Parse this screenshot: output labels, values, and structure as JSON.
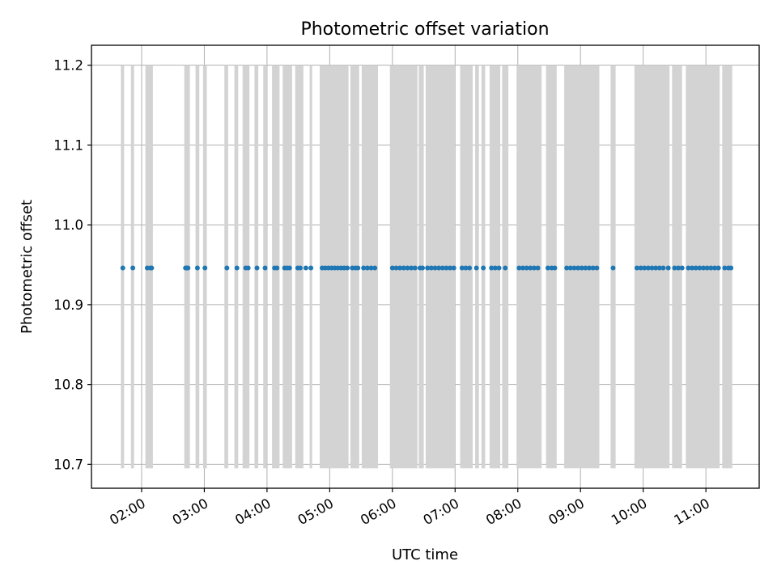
{
  "chart_data": {
    "type": "scatter",
    "title": "Photometric offset variation",
    "xlabel": "UTC time",
    "ylabel": "Photometric offset",
    "x_unit": "hours UTC",
    "xlim": [
      1.2,
      11.85
    ],
    "ylim": [
      10.67,
      11.225
    ],
    "grid": true,
    "x_ticks": [
      {
        "value": 2,
        "label": "02:00"
      },
      {
        "value": 3,
        "label": "03:00"
      },
      {
        "value": 4,
        "label": "04:00"
      },
      {
        "value": 5,
        "label": "05:00"
      },
      {
        "value": 6,
        "label": "06:00"
      },
      {
        "value": 7,
        "label": "07:00"
      },
      {
        "value": 8,
        "label": "08:00"
      },
      {
        "value": 9,
        "label": "09:00"
      },
      {
        "value": 10,
        "label": "10:00"
      },
      {
        "value": 11,
        "label": "11:00"
      }
    ],
    "y_ticks": [
      {
        "value": 10.7,
        "label": "10.7"
      },
      {
        "value": 10.8,
        "label": "10.8"
      },
      {
        "value": 10.9,
        "label": "10.9"
      },
      {
        "value": 11.0,
        "label": "11.0"
      },
      {
        "value": 11.1,
        "label": "11.1"
      },
      {
        "value": 11.2,
        "label": "11.2"
      }
    ],
    "band_range": [
      10.695,
      11.2
    ],
    "colors": {
      "band": "#d3d3d3",
      "points": "#1f77b4",
      "grid": "#b0b0b0"
    },
    "bands": [
      [
        1.67,
        1.72
      ],
      [
        1.83,
        1.88
      ],
      [
        2.06,
        2.18
      ],
      [
        2.68,
        2.77
      ],
      [
        2.86,
        2.92
      ],
      [
        2.98,
        3.04
      ],
      [
        3.32,
        3.38
      ],
      [
        3.48,
        3.54
      ],
      [
        3.61,
        3.72
      ],
      [
        3.8,
        3.86
      ],
      [
        3.94,
        4.0
      ],
      [
        4.08,
        4.2
      ],
      [
        4.25,
        4.4
      ],
      [
        4.45,
        4.58
      ],
      [
        4.68,
        4.72
      ],
      [
        4.84,
        5.3
      ],
      [
        5.33,
        5.47
      ],
      [
        5.51,
        5.77
      ],
      [
        5.96,
        6.4
      ],
      [
        6.42,
        6.5
      ],
      [
        6.53,
        7.0
      ],
      [
        7.08,
        7.28
      ],
      [
        7.32,
        7.38
      ],
      [
        7.42,
        7.48
      ],
      [
        7.55,
        7.72
      ],
      [
        7.75,
        7.85
      ],
      [
        7.98,
        8.38
      ],
      [
        8.45,
        8.62
      ],
      [
        8.74,
        9.3
      ],
      [
        9.48,
        9.56
      ],
      [
        9.86,
        10.42
      ],
      [
        10.46,
        10.62
      ],
      [
        10.68,
        11.22
      ],
      [
        11.26,
        11.42
      ]
    ],
    "y_value": 10.946,
    "points": [
      1.7,
      1.86,
      2.09,
      2.14,
      2.16,
      2.7,
      2.72,
      2.74,
      2.89,
      3.01,
      3.36,
      3.52,
      3.66,
      3.7,
      3.84,
      3.97,
      4.12,
      4.16,
      4.28,
      4.32,
      4.36,
      4.49,
      4.53,
      4.62,
      4.7,
      4.88,
      4.93,
      4.98,
      5.03,
      5.08,
      5.13,
      5.18,
      5.23,
      5.28,
      5.36,
      5.41,
      5.45,
      5.54,
      5.6,
      5.66,
      5.72,
      6.0,
      6.06,
      6.12,
      6.18,
      6.24,
      6.3,
      6.36,
      6.44,
      6.48,
      6.56,
      6.62,
      6.68,
      6.74,
      6.8,
      6.86,
      6.92,
      6.98,
      7.11,
      7.17,
      7.23,
      7.34,
      7.45,
      7.58,
      7.64,
      7.7,
      7.8,
      8.02,
      8.08,
      8.14,
      8.2,
      8.26,
      8.32,
      8.48,
      8.54,
      8.59,
      8.78,
      8.84,
      8.9,
      8.96,
      9.02,
      9.08,
      9.14,
      9.2,
      9.26,
      9.52,
      9.9,
      9.96,
      10.02,
      10.08,
      10.14,
      10.2,
      10.26,
      10.32,
      10.4,
      10.5,
      10.56,
      10.62,
      10.72,
      10.78,
      10.84,
      10.9,
      10.96,
      11.02,
      11.08,
      11.14,
      11.2,
      11.3,
      11.36,
      11.4
    ]
  }
}
